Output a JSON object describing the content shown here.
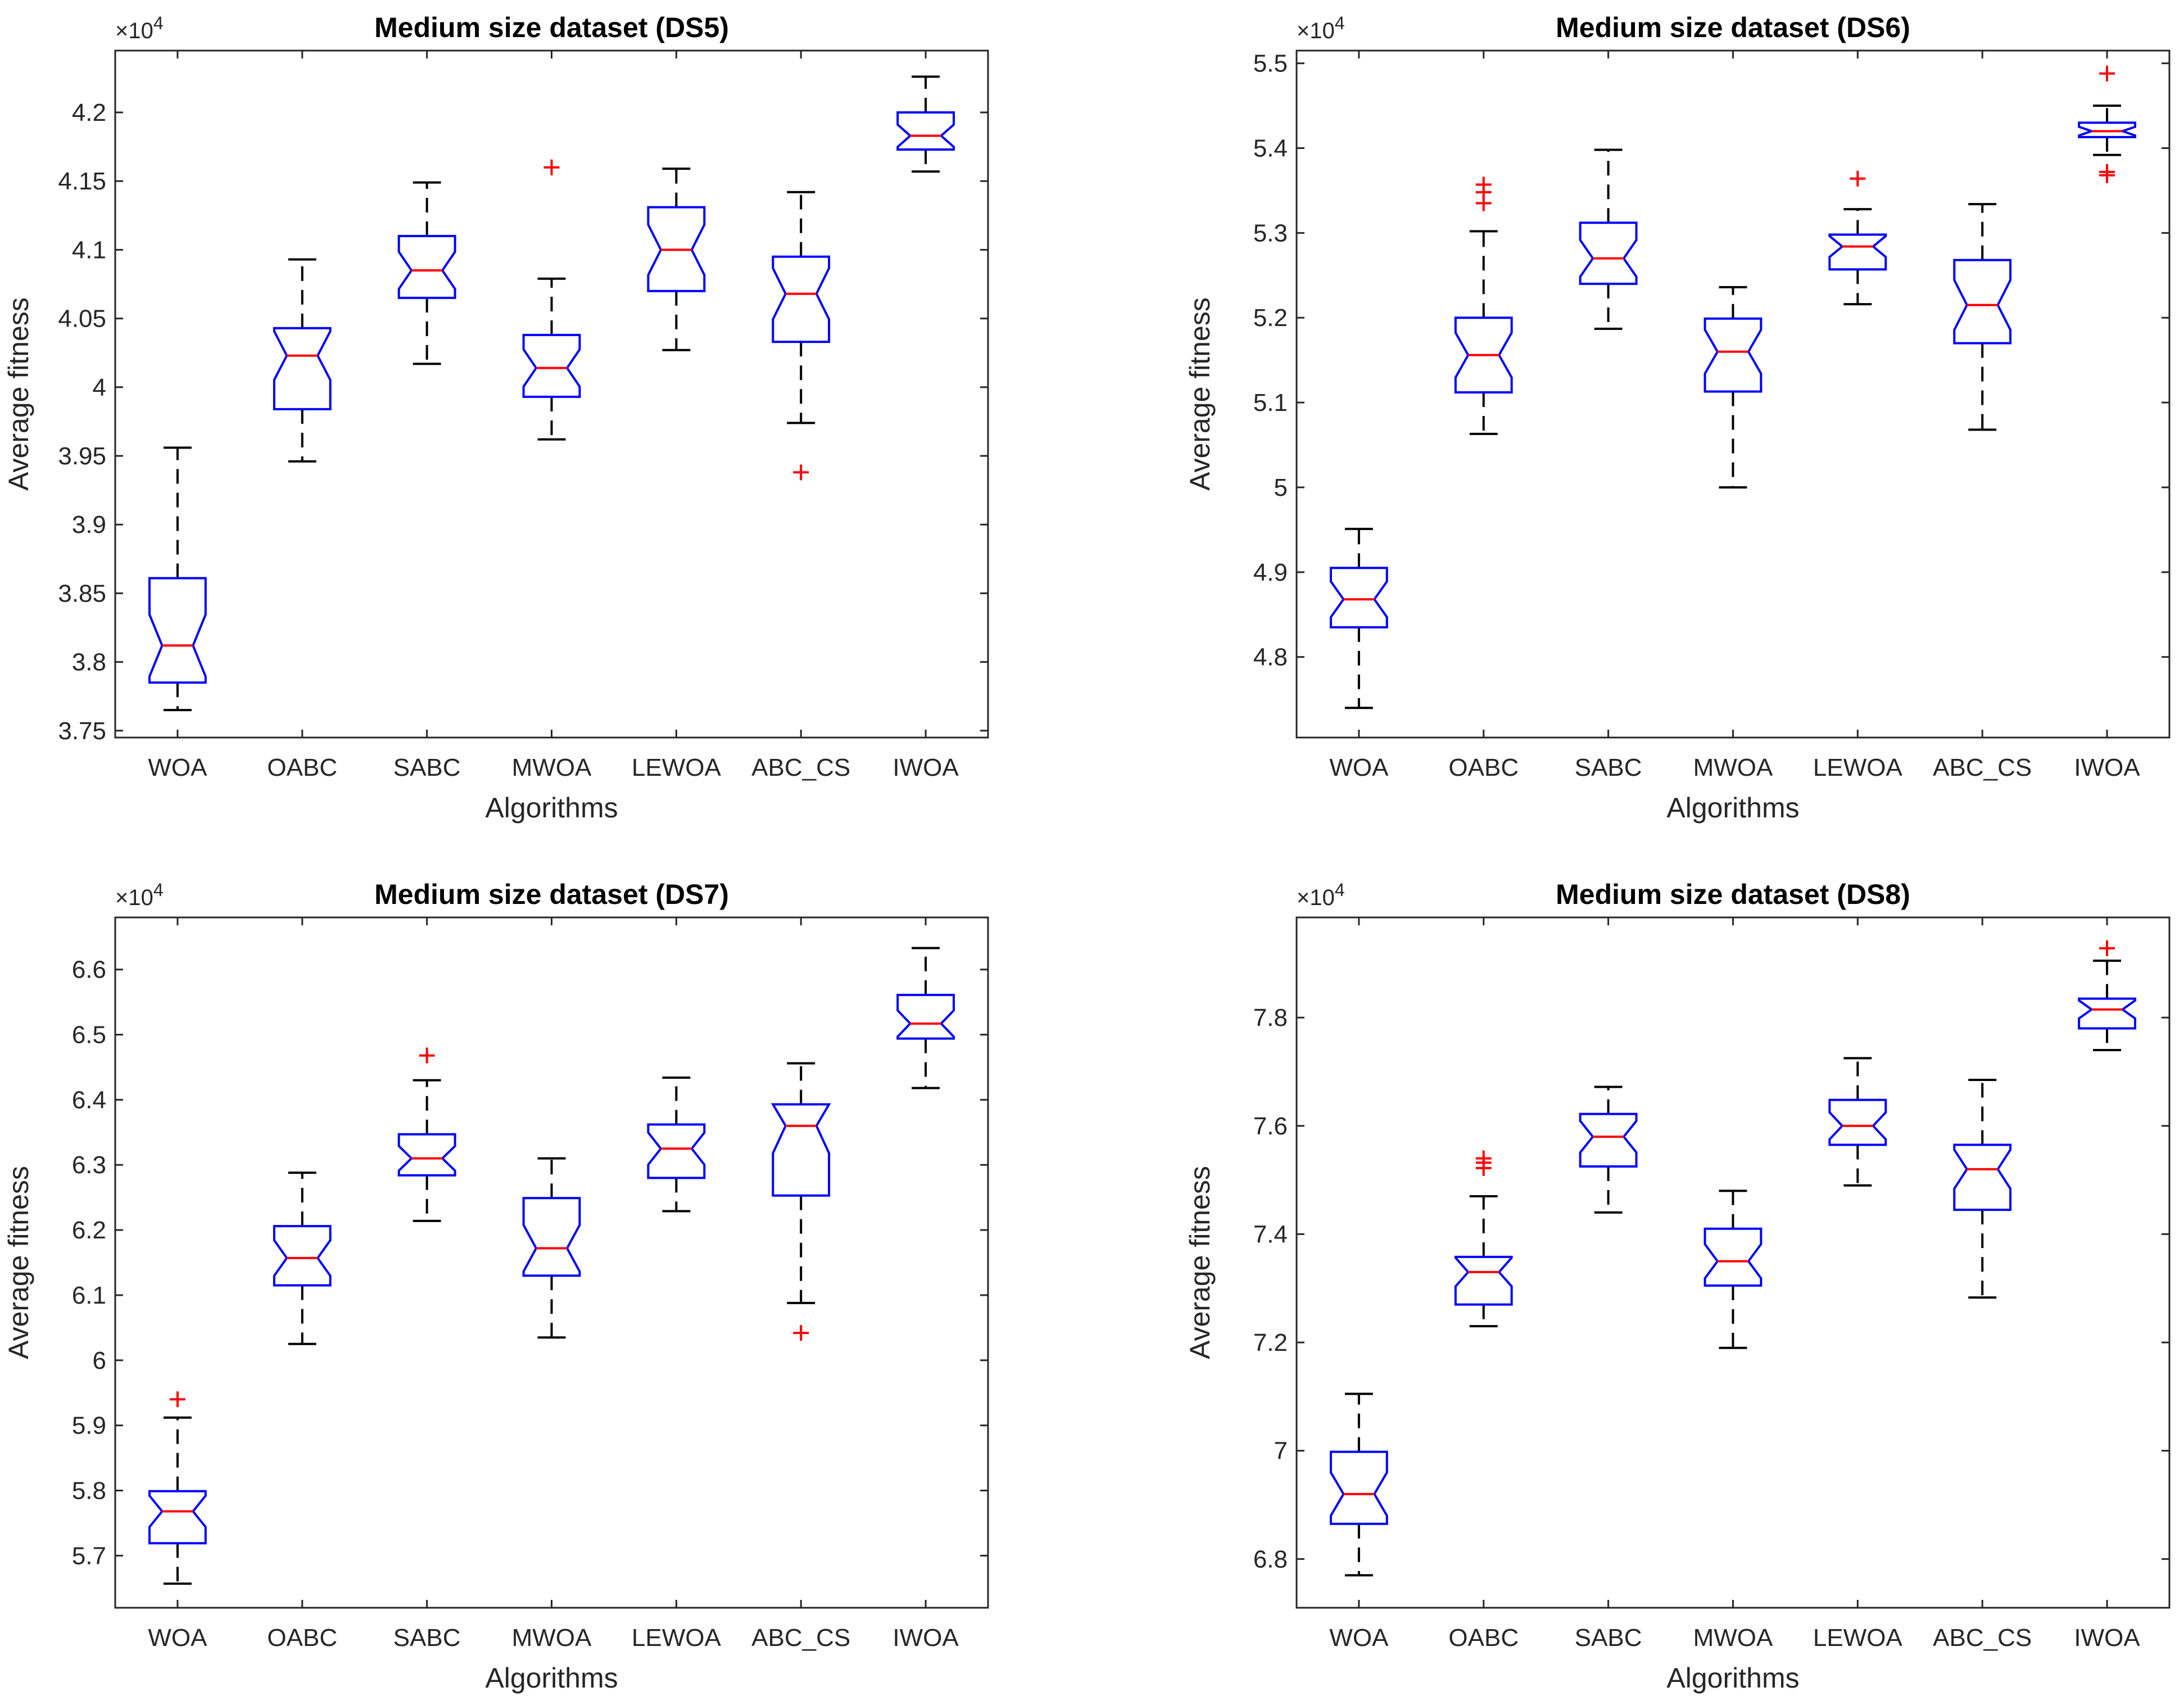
{
  "chart_data": [
    {
      "type": "box",
      "title": "Medium size dataset (DS5)",
      "xlabel": "Algorithms",
      "ylabel": "Average fitness",
      "exponent_label": "×10",
      "exponent": "4",
      "ylim": [
        3.745,
        4.245
      ],
      "yticks": [
        3.75,
        3.8,
        3.85,
        3.9,
        3.95,
        4,
        4.05,
        4.1,
        4.15,
        4.2
      ],
      "ytick_labels": [
        "3.75",
        "3.8",
        "3.85",
        "3.9",
        "3.95",
        "4",
        "4.05",
        "4.1",
        "4.15",
        "4.2"
      ],
      "categories": [
        "WOA",
        "OABC",
        "SABC",
        "MWOA",
        "LEWOA",
        "ABC_CS",
        "IWOA"
      ],
      "boxes": [
        {
          "low": 3.765,
          "q1": 3.785,
          "median": 3.812,
          "q3": 3.861,
          "high": 3.956,
          "outliers": []
        },
        {
          "low": 3.946,
          "q1": 3.984,
          "median": 4.023,
          "q3": 4.043,
          "high": 4.093,
          "outliers": []
        },
        {
          "low": 4.017,
          "q1": 4.065,
          "median": 4.085,
          "q3": 4.11,
          "high": 4.149,
          "outliers": []
        },
        {
          "low": 3.962,
          "q1": 3.993,
          "median": 4.014,
          "q3": 4.038,
          "high": 4.079,
          "outliers": [
            4.16
          ]
        },
        {
          "low": 4.027,
          "q1": 4.07,
          "median": 4.1,
          "q3": 4.131,
          "high": 4.159,
          "outliers": []
        },
        {
          "low": 3.974,
          "q1": 4.033,
          "median": 4.068,
          "q3": 4.095,
          "high": 4.142,
          "outliers": [
            3.938
          ]
        },
        {
          "low": 4.157,
          "q1": 4.173,
          "median": 4.183,
          "q3": 4.2,
          "high": 4.226,
          "outliers": []
        }
      ]
    },
    {
      "type": "box",
      "title": "Medium size dataset (DS6)",
      "xlabel": "Algorithms",
      "ylabel": "Average fitness",
      "exponent_label": "×10",
      "exponent": "4",
      "ylim": [
        4.705,
        5.515
      ],
      "yticks": [
        4.8,
        4.9,
        5,
        5.1,
        5.2,
        5.3,
        5.4,
        5.5
      ],
      "ytick_labels": [
        "4.8",
        "4.9",
        "5",
        "5.1",
        "5.2",
        "5.3",
        "5.4",
        "5.5"
      ],
      "categories": [
        "WOA",
        "OABC",
        "SABC",
        "MWOA",
        "LEWOA",
        "ABC_CS",
        "IWOA"
      ],
      "boxes": [
        {
          "low": 4.74,
          "q1": 4.835,
          "median": 4.868,
          "q3": 4.905,
          "high": 4.951,
          "outliers": []
        },
        {
          "low": 5.063,
          "q1": 5.112,
          "median": 5.156,
          "q3": 5.2,
          "high": 5.302,
          "outliers": [
            5.335,
            5.348,
            5.357
          ]
        },
        {
          "low": 5.187,
          "q1": 5.24,
          "median": 5.27,
          "q3": 5.312,
          "high": 5.398,
          "outliers": []
        },
        {
          "low": 5,
          "q1": 5.113,
          "median": 5.16,
          "q3": 5.199,
          "high": 5.236,
          "outliers": []
        },
        {
          "low": 5.216,
          "q1": 5.257,
          "median": 5.284,
          "q3": 5.298,
          "high": 5.328,
          "outliers": [
            5.364
          ]
        },
        {
          "low": 5.068,
          "q1": 5.17,
          "median": 5.215,
          "q3": 5.268,
          "high": 5.334,
          "outliers": []
        },
        {
          "low": 5.392,
          "q1": 5.413,
          "median": 5.42,
          "q3": 5.43,
          "high": 5.45,
          "outliers": [
            5.368,
            5.372,
            5.488
          ]
        }
      ]
    },
    {
      "type": "box",
      "title": "Medium size dataset (DS7)",
      "xlabel": "Algorithms",
      "ylabel": "Average fitness",
      "exponent_label": "×10",
      "exponent": "4",
      "ylim": [
        5.62,
        6.68
      ],
      "yticks": [
        5.7,
        5.8,
        5.9,
        6,
        6.1,
        6.2,
        6.3,
        6.4,
        6.5,
        6.6
      ],
      "ytick_labels": [
        "5.7",
        "5.8",
        "5.9",
        "6",
        "6.1",
        "6.2",
        "6.3",
        "6.4",
        "6.5",
        "6.6"
      ],
      "categories": [
        "WOA",
        "OABC",
        "SABC",
        "MWOA",
        "LEWOA",
        "ABC_CS",
        "IWOA"
      ],
      "boxes": [
        {
          "low": 5.657,
          "q1": 5.719,
          "median": 5.768,
          "q3": 5.799,
          "high": 5.912,
          "outliers": [
            5.94
          ]
        },
        {
          "low": 6.025,
          "q1": 6.115,
          "median": 6.157,
          "q3": 6.206,
          "high": 6.288,
          "outliers": []
        },
        {
          "low": 6.214,
          "q1": 6.284,
          "median": 6.31,
          "q3": 6.347,
          "high": 6.43,
          "outliers": [
            6.468
          ]
        },
        {
          "low": 6.035,
          "q1": 6.13,
          "median": 6.172,
          "q3": 6.249,
          "high": 6.31,
          "outliers": []
        },
        {
          "low": 6.229,
          "q1": 6.28,
          "median": 6.325,
          "q3": 6.362,
          "high": 6.434,
          "outliers": []
        },
        {
          "low": 6.088,
          "q1": 6.253,
          "median": 6.36,
          "q3": 6.393,
          "high": 6.456,
          "outliers": [
            6.042
          ]
        },
        {
          "low": 6.418,
          "q1": 6.494,
          "median": 6.517,
          "q3": 6.561,
          "high": 6.633,
          "outliers": []
        }
      ]
    },
    {
      "type": "box",
      "title": "Medium size dataset (DS8)",
      "xlabel": "Algorithms",
      "ylabel": "Average fitness",
      "exponent_label": "×10",
      "exponent": "4",
      "ylim": [
        6.71,
        7.985
      ],
      "yticks": [
        6.8,
        7,
        7.2,
        7.4,
        7.6,
        7.8
      ],
      "ytick_labels": [
        "6.8",
        "7",
        "7.2",
        "7.4",
        "7.6",
        "7.8"
      ],
      "categories": [
        "WOA",
        "OABC",
        "SABC",
        "MWOA",
        "LEWOA",
        "ABC_CS",
        "IWOA"
      ],
      "boxes": [
        {
          "low": 6.77,
          "q1": 6.865,
          "median": 6.92,
          "q3": 6.998,
          "high": 7.105,
          "outliers": []
        },
        {
          "low": 7.23,
          "q1": 7.27,
          "median": 7.33,
          "q3": 7.358,
          "high": 7.47,
          "outliers": [
            7.522,
            7.532,
            7.54
          ]
        },
        {
          "low": 7.44,
          "q1": 7.525,
          "median": 7.58,
          "q3": 7.622,
          "high": 7.672,
          "outliers": []
        },
        {
          "low": 7.19,
          "q1": 7.305,
          "median": 7.35,
          "q3": 7.41,
          "high": 7.48,
          "outliers": []
        },
        {
          "low": 7.49,
          "q1": 7.565,
          "median": 7.6,
          "q3": 7.648,
          "high": 7.725,
          "outliers": []
        },
        {
          "low": 7.283,
          "q1": 7.445,
          "median": 7.52,
          "q3": 7.565,
          "high": 7.685,
          "outliers": []
        },
        {
          "low": 7.74,
          "q1": 7.78,
          "median": 7.815,
          "q3": 7.835,
          "high": 7.905,
          "outliers": [
            7.928
          ]
        }
      ]
    }
  ],
  "colors": {
    "box": "#0000ff",
    "median": "#ff0000",
    "whisker": "#000000",
    "outlier": "#ff0000",
    "axis": "#262626"
  }
}
